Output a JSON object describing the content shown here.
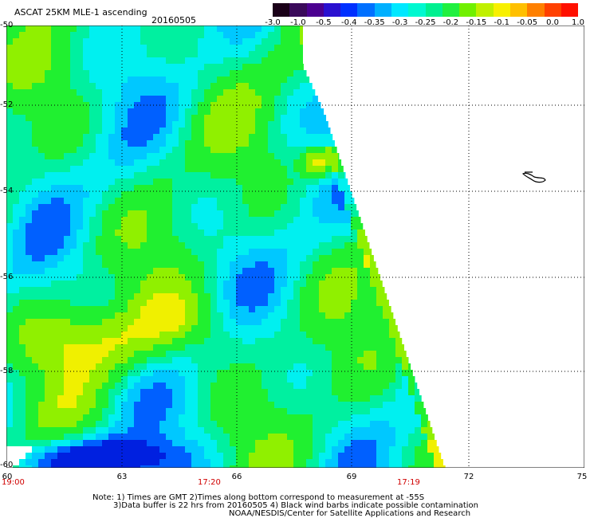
{
  "header": {
    "title": "ASCAT 25KM MLE-1 ascending",
    "date": "20160505"
  },
  "colorbar": {
    "labels": [
      "-3.0",
      "-1.0",
      "-0.5",
      "-0.4",
      "-0.35",
      "-0.3",
      "-0.25",
      "-0.2",
      "-0.15",
      "-0.1",
      "-0.05",
      "0.0",
      "1.0"
    ],
    "colors": [
      "#2a0a2e",
      "#4a0a6e",
      "#2d00c8",
      "#0040ff",
      "#0090ff",
      "#00d0ff",
      "#00f0f0",
      "#00f0a0",
      "#30f000",
      "#a0f000",
      "#f0f000",
      "#ff9000",
      "#ff2000"
    ]
  },
  "axes": {
    "y_labels": [
      "-50",
      "-52",
      "-54",
      "-56",
      "-58",
      "-60"
    ],
    "x_labels": [
      "60",
      "63",
      "66",
      "69",
      "72",
      "75"
    ]
  },
  "times": {
    "left": "19:00",
    "middle": "17:20",
    "right": "17:19"
  },
  "notes": {
    "line1": "Note: 1) Times are GMT 2)Times along bottom correspond to measurement at -55S",
    "line2": "3)Data buffer is 22 hrs from 20160505 4) Black wind barbs indicate possible contamination",
    "line3": "NOAA/NESDIS/Center for Satellite Applications and Research"
  }
}
